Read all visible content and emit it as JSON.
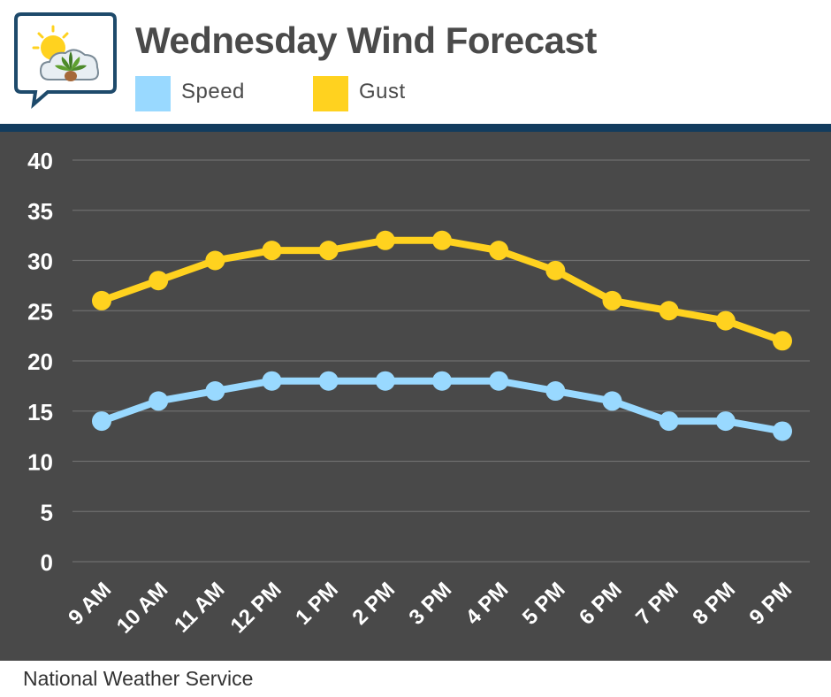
{
  "header": {
    "title": "Wednesday Wind Forecast",
    "logo_icon": "weather-cloud-sun-plant-icon"
  },
  "legend": [
    {
      "label": "Speed",
      "color": "#99d9ff"
    },
    {
      "label": "Gust",
      "color": "#ffd21f"
    }
  ],
  "footer": {
    "source": "National Weather Service"
  },
  "colors": {
    "plot_background": "#494949",
    "header_rule": "#123c5e",
    "gridline": "#6e6e6e",
    "tick_text": "#ffffff"
  },
  "chart_data": {
    "type": "line",
    "title": "Wednesday Wind Forecast",
    "xlabel": "",
    "ylabel": "",
    "categories": [
      "9 AM",
      "10 AM",
      "11 AM",
      "12 PM",
      "1 PM",
      "2 PM",
      "3 PM",
      "4 PM",
      "5 PM",
      "6 PM",
      "7 PM",
      "8 PM",
      "9 PM"
    ],
    "series": [
      {
        "name": "Speed",
        "color": "#99d9ff",
        "values": [
          14,
          16,
          17,
          18,
          18,
          18,
          18,
          18,
          17,
          16,
          14,
          14,
          13
        ]
      },
      {
        "name": "Gust",
        "color": "#ffd21f",
        "values": [
          26,
          28,
          30,
          31,
          31,
          32,
          32,
          31,
          29,
          26,
          25,
          24,
          22
        ]
      }
    ],
    "ylim": [
      0,
      40
    ],
    "yticks": [
      0,
      5,
      10,
      15,
      20,
      25,
      30,
      35,
      40
    ],
    "grid": true,
    "legend_position": "top-left"
  }
}
